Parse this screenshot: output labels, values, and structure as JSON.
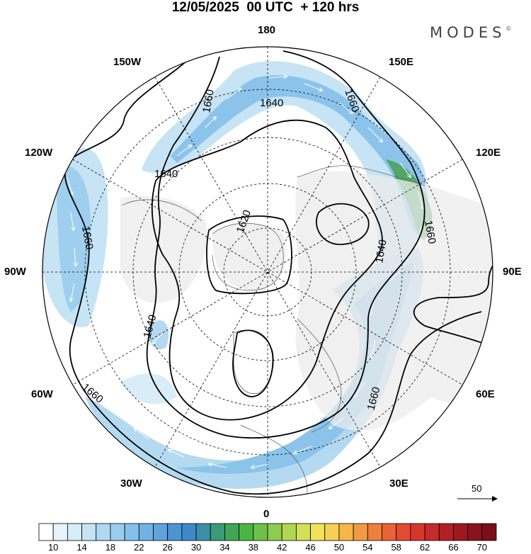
{
  "header": {
    "title": "12/05/2025  00 UTC  + 120 hrs",
    "brand": "MODES",
    "brand_mark": "©"
  },
  "map": {
    "projection": "north-polar-stereographic",
    "longitude_labels": {
      "top": "180",
      "bottom": "0",
      "left": "90W",
      "right": "90E",
      "nw1": "150W",
      "nw2": "120W",
      "ne1": "150E",
      "ne2": "120E",
      "sw1": "60W",
      "sw2": "30W",
      "se1": "60E",
      "se2": "30E"
    },
    "contour_labels": [
      "1660",
      "1640",
      "1660",
      "1640",
      "1620",
      "1660",
      "1640",
      "1660",
      "1640",
      "1660",
      "1660"
    ],
    "reference_vector": "50"
  },
  "colorbar": {
    "ticks": [
      "10",
      "14",
      "18",
      "22",
      "26",
      "30",
      "34",
      "38",
      "42",
      "46",
      "50",
      "54",
      "58",
      "62",
      "66",
      "70"
    ],
    "colors": [
      "#ffffff",
      "#e8f4fb",
      "#d6ecf8",
      "#c4e3f5",
      "#afd8f1",
      "#9acdee",
      "#85c0ea",
      "#70b2e4",
      "#5ea3dc",
      "#4d94d3",
      "#3f88c8",
      "#3d8fa8",
      "#3d9a7a",
      "#3ea656",
      "#4cb444",
      "#6dc14a",
      "#8ecc4f",
      "#b0d653",
      "#d2df57",
      "#efe35a",
      "#f7cf52",
      "#f5b64a",
      "#f29b43",
      "#ee7f3d",
      "#ea6337",
      "#e24a31",
      "#d6372d",
      "#c62a2a",
      "#b32026",
      "#9e1822",
      "#8a131e",
      "#7a0f1a"
    ]
  }
}
